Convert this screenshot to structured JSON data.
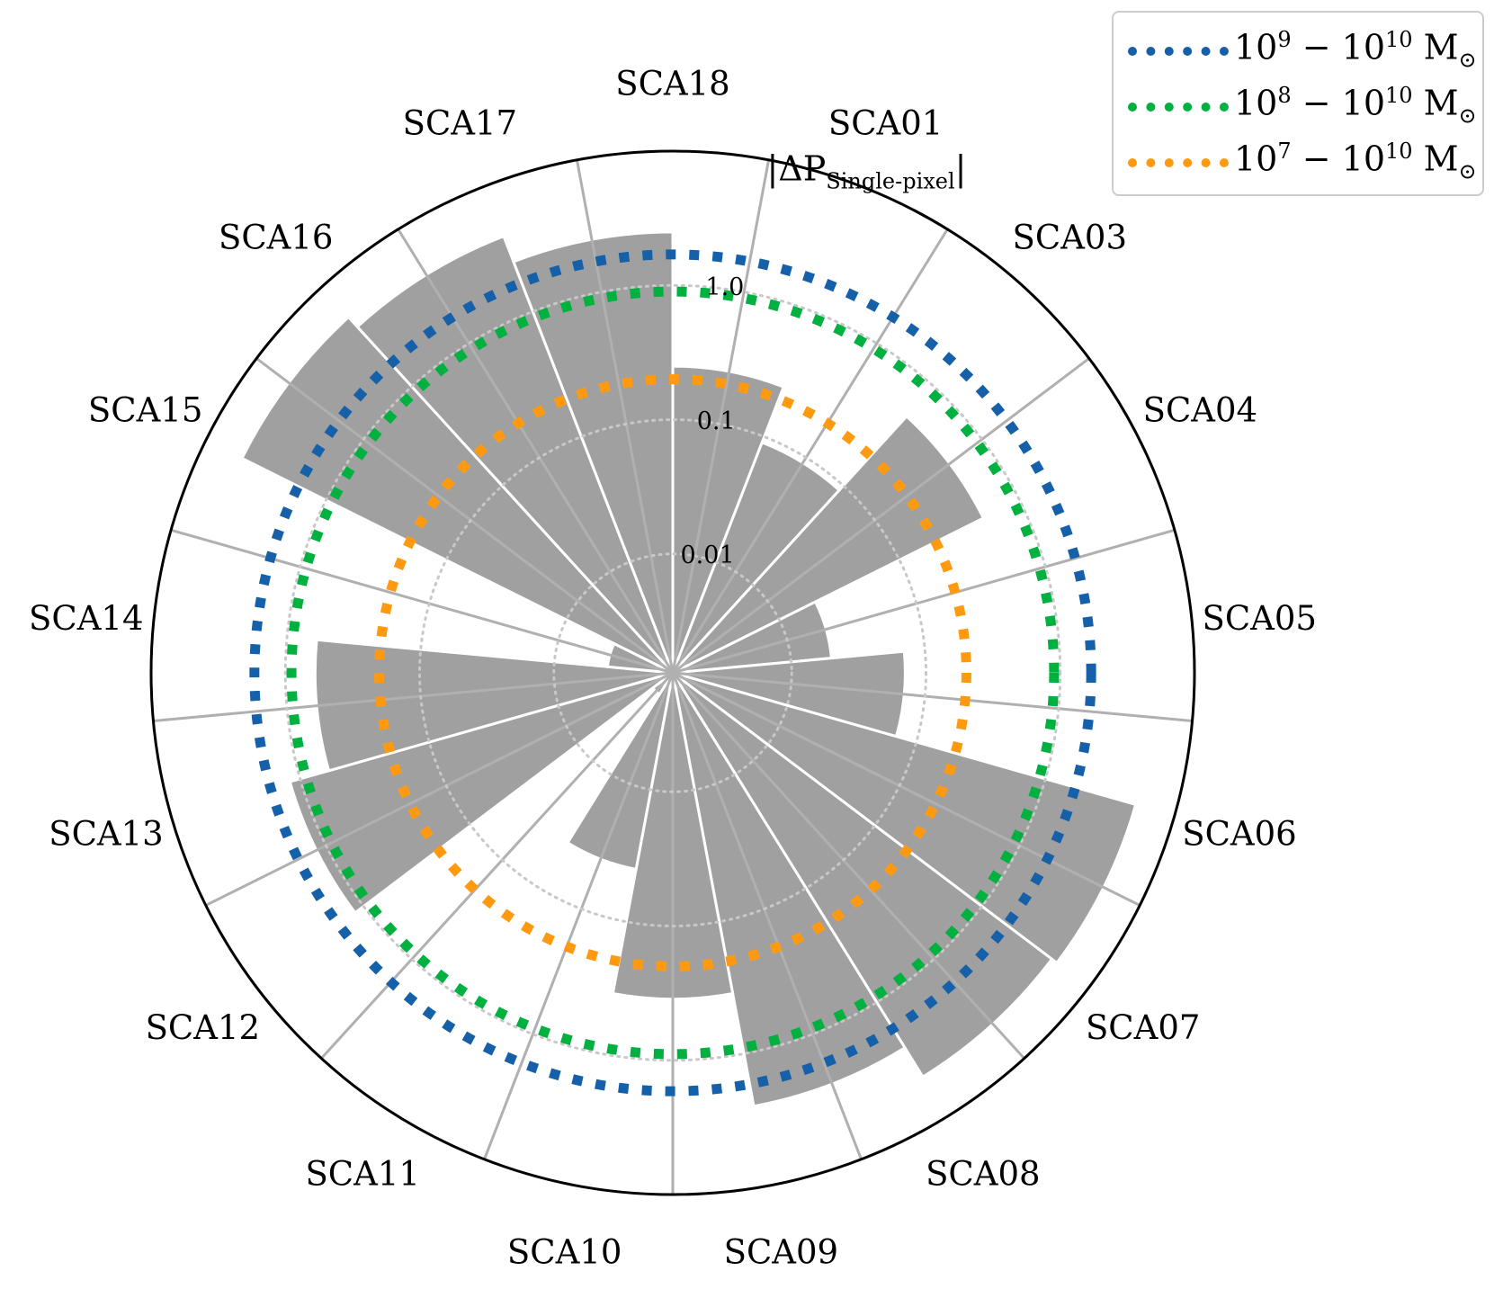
{
  "chart_data": {
    "type": "polar-bar",
    "radial_scale": "log",
    "radial_label": {
      "main": "|ΔP",
      "subscript": "Single-pixel",
      "close": "|"
    },
    "radial_ticks": [
      0.01,
      0.1,
      1.0
    ],
    "radial_tick_labels": [
      "0.01",
      "0.1",
      "1.0"
    ],
    "categories": [
      "SCA01",
      "SCA03",
      "SCA04",
      "SCA05",
      "SCA06",
      "SCA07",
      "SCA08",
      "SCA09",
      "SCA10",
      "SCA11",
      "SCA12",
      "SCA13",
      "SCA14",
      "SCA15",
      "SCA16",
      "SCA17",
      "SCA18"
    ],
    "angle_labels": [
      "SCA18",
      "SCA01",
      "SCA03",
      "SCA04",
      "SCA05",
      "SCA06",
      "SCA07",
      "SCA08",
      "SCA09",
      "SCA10",
      "SCA11",
      "SCA12",
      "SCA13",
      "SCA14",
      "SCA15",
      "SCA16",
      "SCA17"
    ],
    "values": [
      0.25,
      0.09,
      0.5,
      0.02,
      0.07,
      5.0,
      4.5,
      2.5,
      0.35,
      0.04,
      0.002,
      1.2,
      0.6,
      0.004,
      5.0,
      4.0,
      2.5
    ],
    "bar_color": "#a0a0a0",
    "grid": true,
    "series": [
      {
        "name": "10^9 − 10^10 M⊙",
        "radius_value": 1.7,
        "color": "#1560a8"
      },
      {
        "name": "10^8 − 10^10 M⊙",
        "radius_value": 0.9,
        "color": "#00b140"
      },
      {
        "name": "10^7 − 10^10 M⊙",
        "radius_value": 0.2,
        "color": "#ff9a10"
      }
    ],
    "legend_placement": "top-right"
  },
  "legend": {
    "entries": [
      {
        "base": "10",
        "exp1": "9",
        "mid": " − 10",
        "exp2": "10",
        "unit": " M",
        "unit_sub": "⊙"
      },
      {
        "base": "10",
        "exp1": "8",
        "mid": " − 10",
        "exp2": "10",
        "unit": " M",
        "unit_sub": "⊙"
      },
      {
        "base": "10",
        "exp1": "7",
        "mid": " − 10",
        "exp2": "10",
        "unit": " M",
        "unit_sub": "⊙"
      }
    ]
  }
}
